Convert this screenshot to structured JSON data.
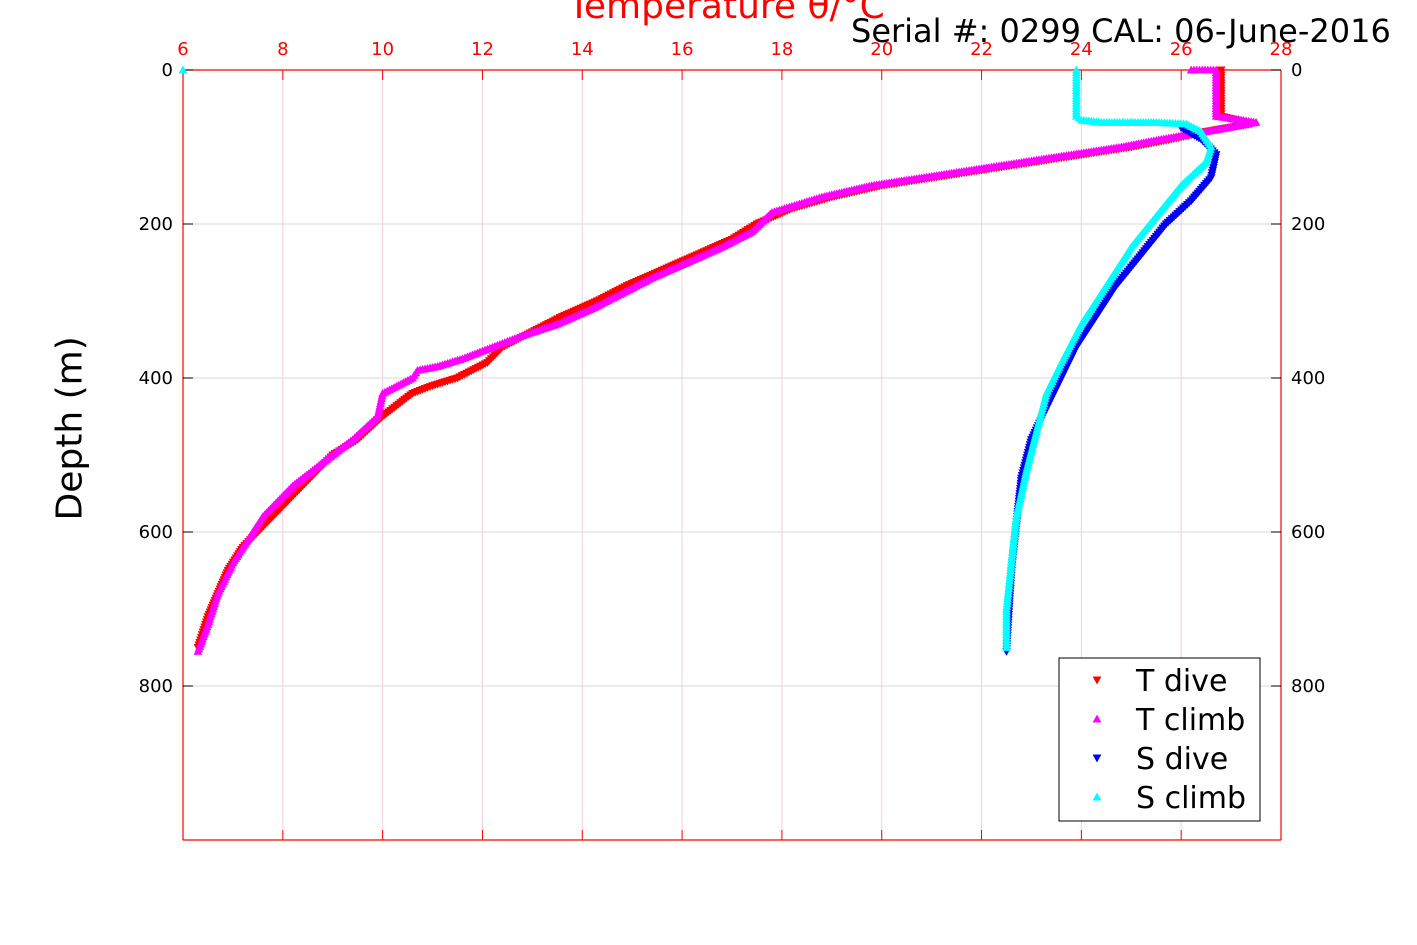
{
  "chart_data": {
    "type": "scatter",
    "title": "Temperature θ/°C",
    "subtitle": "Serial #: 0299 CAL: 06-June-2016",
    "xlabel": "Temperature θ/°C",
    "ylabel": "Depth (m)",
    "xlim": [
      6,
      28
    ],
    "ylim": [
      0,
      1000
    ],
    "y_reversed": true,
    "x_axis_position": "top",
    "xticks": [
      "6",
      "8",
      "10",
      "12",
      "14",
      "16",
      "18",
      "20",
      "22",
      "24",
      "26",
      "28"
    ],
    "yticks": [
      "0",
      "200",
      "400",
      "600",
      "800"
    ],
    "grid": true,
    "legend_position": "bottom-right",
    "colors": {
      "axis_top": "#ff0000",
      "axis_left": "#000000",
      "grid": "#d9d9d9"
    },
    "series": [
      {
        "name": "T dive",
        "color": "#ff0000",
        "marker": "triangle-down",
        "x": [
          26.8,
          26.8,
          27.4,
          26.5,
          25.8,
          25.0,
          24.0,
          23.0,
          22.0,
          21.0,
          20.0,
          19.0,
          18.2,
          17.5,
          17.0,
          16.3,
          15.6,
          14.9,
          14.3,
          13.6,
          13.0,
          12.4,
          12.1,
          11.5,
          11.0,
          10.6,
          10.0,
          9.5,
          9.0,
          8.7,
          8.4,
          8.1,
          7.8,
          7.5,
          7.2,
          6.9,
          6.7,
          6.5,
          6.3
        ],
        "y": [
          0,
          60,
          70,
          80,
          90,
          100,
          110,
          120,
          130,
          140,
          150,
          165,
          180,
          200,
          220,
          240,
          260,
          280,
          300,
          320,
          340,
          360,
          380,
          400,
          410,
          420,
          450,
          480,
          500,
          520,
          540,
          560,
          580,
          600,
          620,
          650,
          680,
          710,
          750
        ]
      },
      {
        "name": "T climb",
        "color": "#ff00ff",
        "marker": "triangle-up",
        "x": [
          26.2,
          26.7,
          26.7,
          27.5,
          26.5,
          25.6,
          24.8,
          23.8,
          22.8,
          21.8,
          20.8,
          19.8,
          18.8,
          17.8,
          17.4,
          16.8,
          16.1,
          15.4,
          14.8,
          14.2,
          13.5,
          12.8,
          12.2,
          11.6,
          11.1,
          10.7,
          10.6,
          10.0,
          9.9,
          9.4,
          9.0,
          8.6,
          8.2,
          7.9,
          7.6,
          7.3,
          7.0,
          6.7,
          6.5,
          6.3
        ],
        "y": [
          0,
          0,
          60,
          68,
          80,
          90,
          100,
          110,
          120,
          130,
          140,
          150,
          165,
          185,
          210,
          230,
          250,
          270,
          290,
          310,
          330,
          345,
          360,
          375,
          385,
          390,
          400,
          420,
          450,
          480,
          500,
          520,
          540,
          560,
          580,
          610,
          640,
          680,
          720,
          755
        ]
      },
      {
        "name": "S dive",
        "color": "#0000ee",
        "marker": "triangle-down",
        "x": [
          26.0,
          26.4,
          26.7,
          26.6,
          26.2,
          25.7,
          25.2,
          24.7,
          24.3,
          23.9,
          23.6,
          23.3,
          23.0,
          22.8,
          22.7,
          22.6,
          22.55,
          22.5
        ],
        "y": [
          75,
          90,
          110,
          140,
          170,
          200,
          240,
          280,
          320,
          360,
          400,
          440,
          480,
          530,
          590,
          650,
          700,
          755
        ]
      },
      {
        "name": "S climb",
        "color": "#00ffff",
        "marker": "triangle-up",
        "x": [
          23.9,
          23.9,
          24.0,
          24.4,
          25.5,
          26.1,
          26.4,
          26.6,
          26.5,
          26.0,
          25.5,
          25.0,
          24.5,
          24.0,
          23.6,
          23.3,
          23.1,
          22.9,
          22.7,
          22.6,
          22.5,
          22.5,
          6.0
        ],
        "y": [
          0,
          60,
          65,
          68,
          68,
          70,
          80,
          100,
          120,
          150,
          190,
          230,
          280,
          330,
          380,
          420,
          470,
          520,
          580,
          640,
          700,
          750,
          0
        ]
      }
    ]
  }
}
